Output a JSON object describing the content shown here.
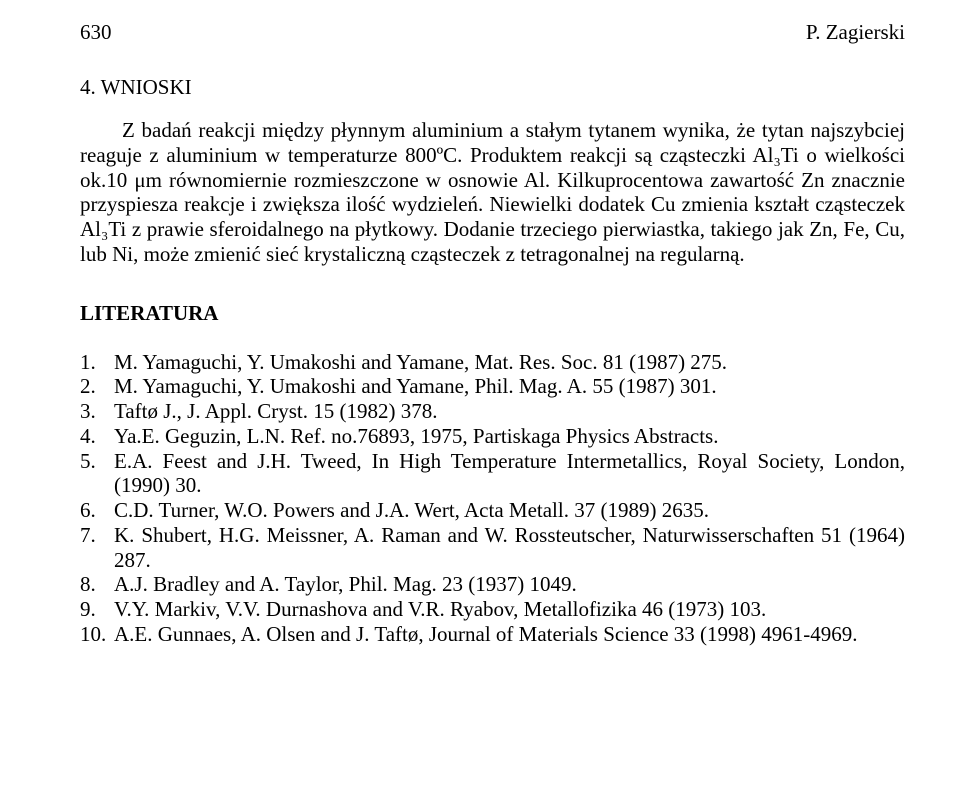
{
  "header": {
    "page_number": "630",
    "author": "P. Zagierski"
  },
  "section_heading": "4. WNIOSKI",
  "body_paragraph": "Z badań reakcji między płynnym aluminium a stałym tytanem wynika, że tytan najszybciej reaguje z aluminium w temperaturze 800ºC. Produktem reakcji są cząsteczki Al₃Ti o wielkości ok.10 μm równomiernie rozmieszczone w osnowie Al. Kilkuprocentowa zawartość Zn znacznie przyspiesza reakcje i zwiększa ilość wydzieleń. Niewielki dodatek Cu zmienia kształt cząsteczek Al₃Ti z prawie sferoidalnego na płytkowy. Dodanie trzeciego pierwiastka, takiego jak Zn, Fe, Cu, lub Ni, może zmienić sieć krystaliczną cząsteczek z tetragonalnej na regularną.",
  "literature_heading": "LITERATURA",
  "references": [
    {
      "num": "1.",
      "text": "M. Yamaguchi, Y. Umakoshi and Yamane, Mat. Res. Soc. 81 (1987) 275."
    },
    {
      "num": "2.",
      "text": "M. Yamaguchi, Y. Umakoshi and Yamane, Phil. Mag. A. 55 (1987) 301."
    },
    {
      "num": "3.",
      "text": "Taftø J., J. Appl. Cryst. 15 (1982) 378."
    },
    {
      "num": "4.",
      "text": "Ya.E. Geguzin, L.N. Ref. no.76893, 1975, Partiskaga Physics Abstracts."
    },
    {
      "num": "5.",
      "text": "E.A. Feest and J.H. Tweed, In High Temperature Intermetallics, Royal Society, London, (1990) 30."
    },
    {
      "num": "6.",
      "text": "C.D. Turner, W.O. Powers and J.A. Wert, Acta Metall. 37 (1989) 2635."
    },
    {
      "num": "7.",
      "text": "K. Shubert, H.G. Meissner, A. Raman and W. Rossteutscher, Naturwisserschaften 51 (1964) 287."
    },
    {
      "num": "8.",
      "text": "A.J. Bradley and A. Taylor, Phil. Mag. 23 (1937) 1049."
    },
    {
      "num": "9.",
      "text": "V.Y. Markiv, V.V. Durnashova and V.R. Ryabov, Metallofizika 46 (1973) 103."
    },
    {
      "num": "10.",
      "text": "A.E. Gunnaes, A. Olsen and J. Taftø, Journal of Materials Science 33 (1998) 4961-4969."
    }
  ],
  "colors": {
    "background": "#ffffff",
    "text": "#000000"
  },
  "typography": {
    "body_fontsize_pt": 16,
    "font_family": "Times New Roman"
  }
}
